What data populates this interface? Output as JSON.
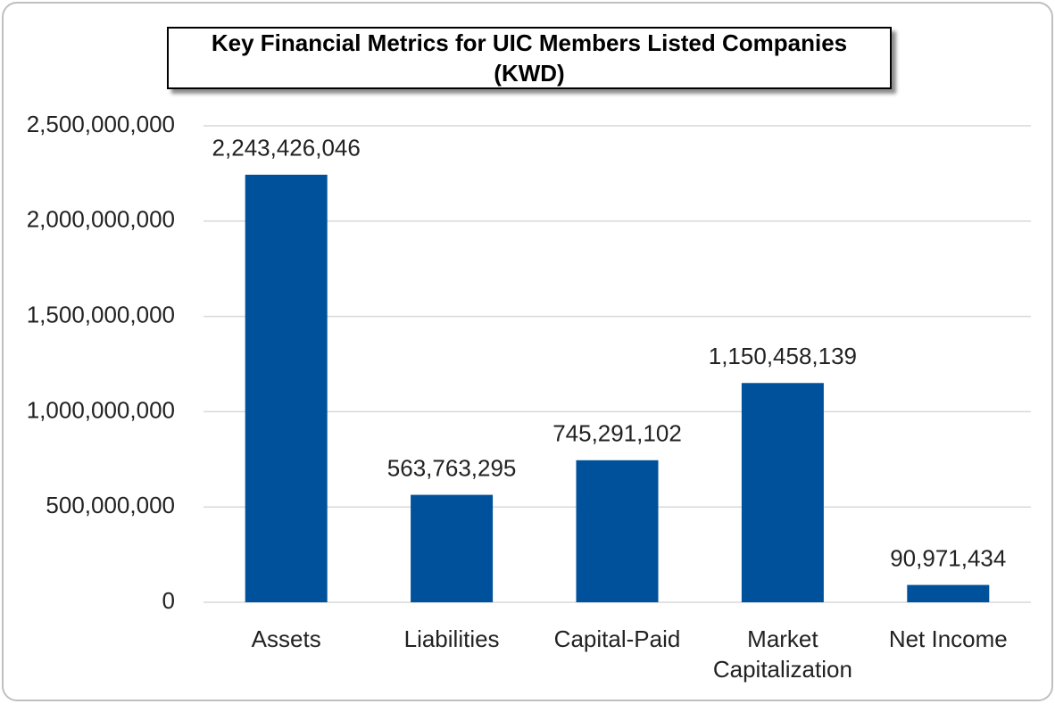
{
  "chart_data": {
    "type": "bar",
    "title": "Key Financial Metrics for UIC Members Listed Companies (KWD)",
    "categories": [
      "Assets",
      "Liabilities",
      "Capital-Paid",
      "Market Capitalization",
      "Net Income"
    ],
    "values": [
      2243426046,
      563763295,
      745291102,
      1150458139,
      90971434
    ],
    "value_labels": [
      "2,243,426,046",
      "563,763,295",
      "745,291,102",
      "1,150,458,139",
      "90,971,434"
    ],
    "color": "#00519b",
    "ylim": [
      0,
      2500000000
    ],
    "yticks": [
      0,
      {
        "value": 500000000,
        "label": "500,000,000"
      },
      {
        "value": 1000000000,
        "label": "1,000,000,000"
      },
      {
        "value": 1500000000,
        "label": "1,500,000,000"
      },
      {
        "value": 2000000000,
        "label": "2,000,000,000"
      },
      {
        "value": 2500000000,
        "label": "2,500,000,000"
      }
    ],
    "grid": true
  }
}
